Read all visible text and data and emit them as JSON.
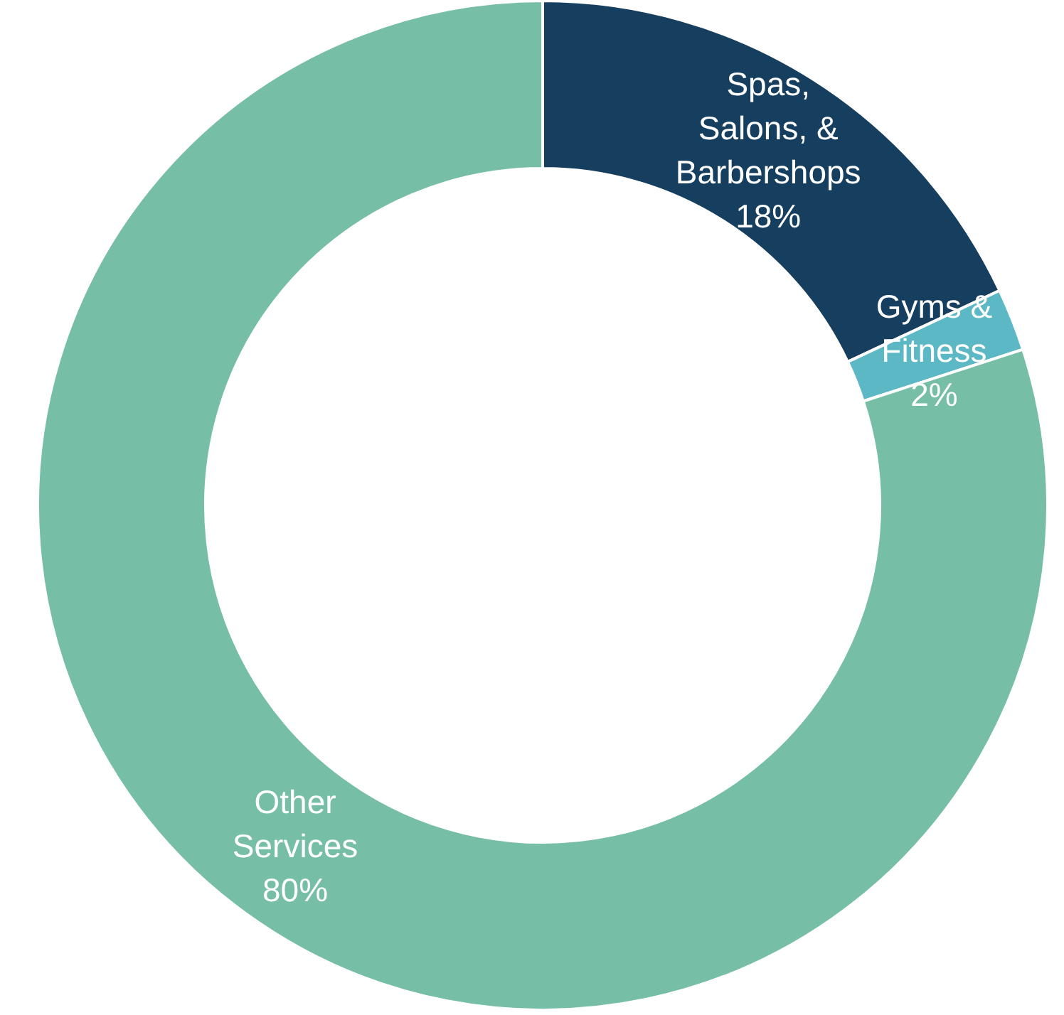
{
  "chart_data": {
    "type": "donut",
    "categories": [
      "Spas, Salons, & Barbershops",
      "Gyms & Fitness",
      "Other Services"
    ],
    "values": [
      18,
      2,
      80
    ],
    "value_labels": [
      "18%",
      "2%",
      "80%"
    ],
    "colors": [
      "#163f5f",
      "#5bb8c4",
      "#76bea6"
    ]
  }
}
